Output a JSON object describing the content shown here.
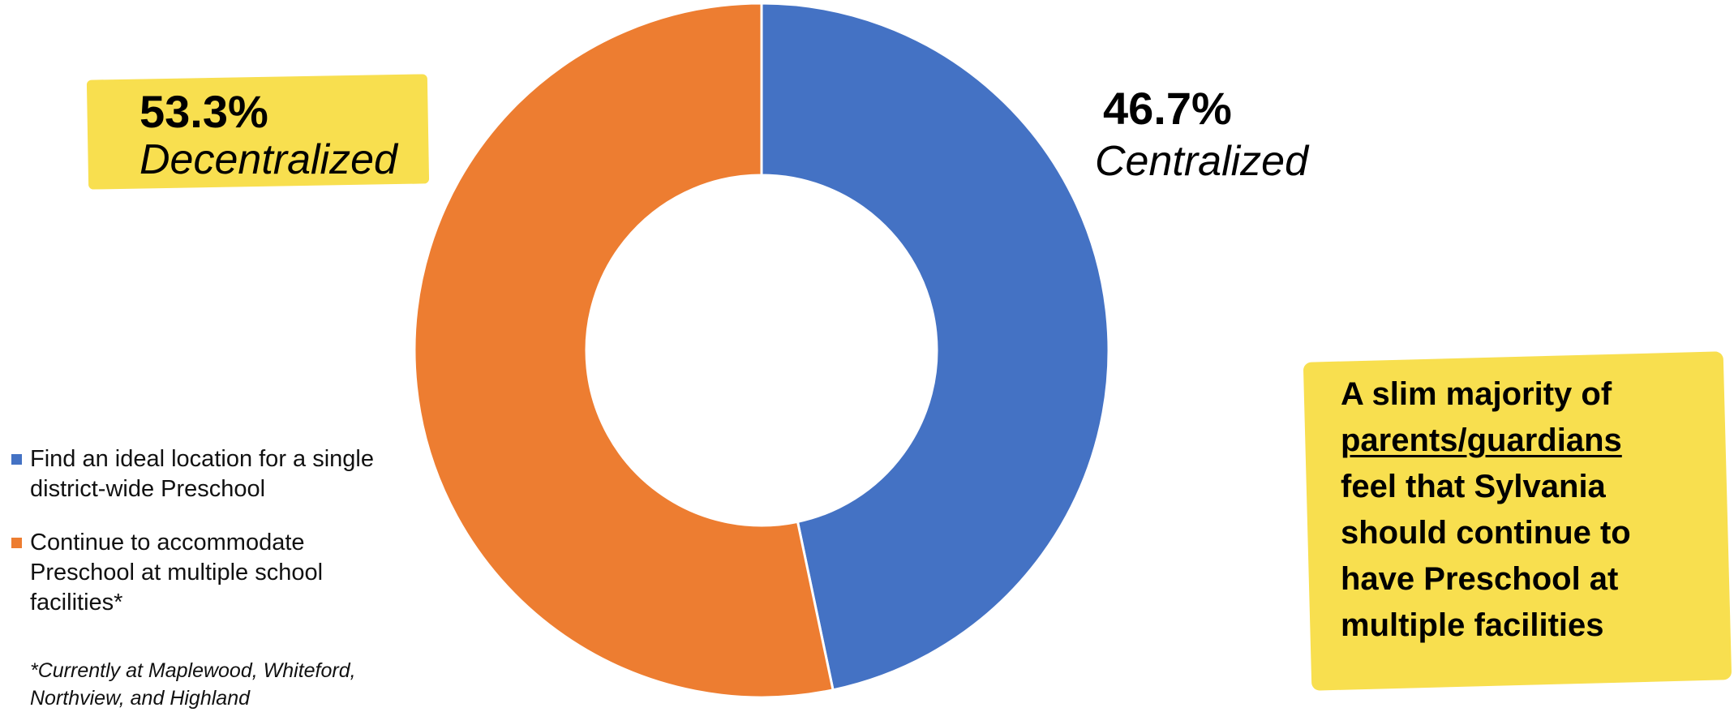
{
  "chart_data": {
    "type": "pie",
    "donut": true,
    "series": [
      {
        "name": "Find an ideal location for a single district-wide Preschool",
        "label": "Centralized",
        "value": 46.7,
        "value_label": "46.7%",
        "color": "#4472c4"
      },
      {
        "name": "Continue to accommodate Preschool at multiple school facilities*",
        "label": "Decentralized",
        "value": 53.3,
        "value_label": "53.3%",
        "color": "#ed7d31"
      }
    ],
    "legend_position": "left",
    "footnote": "*Currently at Maplewood, Whiteford, Northview, and Highland"
  },
  "callout": {
    "line1": "A slim majority of",
    "line2": "parents/guardians",
    "line3": "feel that Sylvania",
    "line4": "should continue to",
    "line5": "have Preschool at",
    "line6": "multiple facilities"
  },
  "colors": {
    "highlight": "#f8df4f"
  }
}
